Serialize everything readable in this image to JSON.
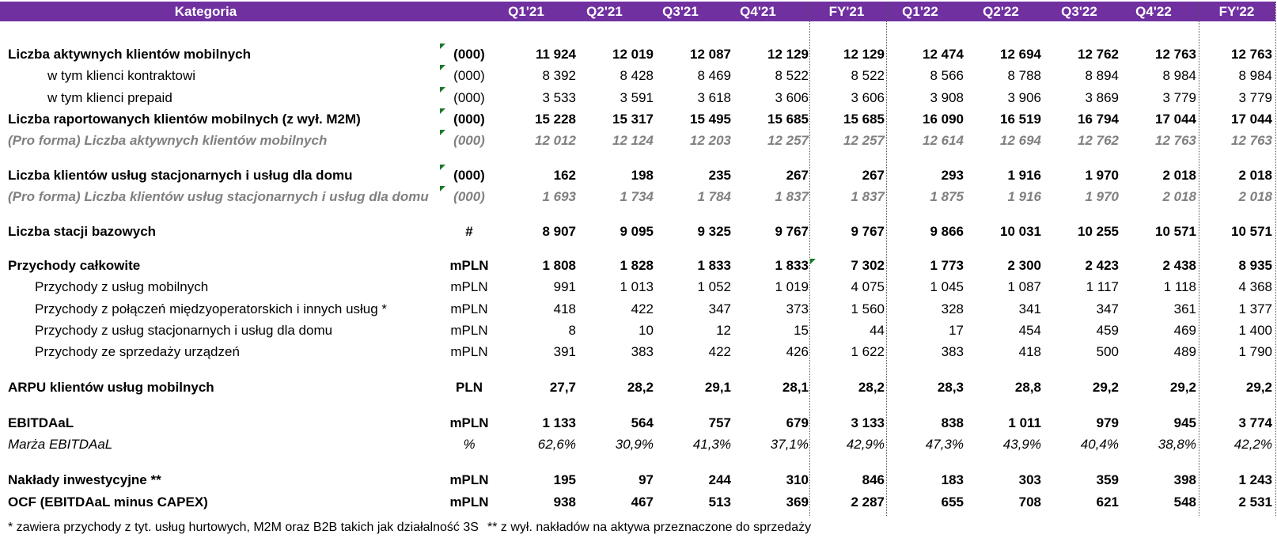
{
  "header": {
    "category": "Kategoria",
    "periods": [
      "Q1'21",
      "Q2'21",
      "Q3'21",
      "Q4'21",
      "FY'21",
      "Q1'22",
      "Q2'22",
      "Q3'22",
      "Q4'22",
      "FY'22"
    ]
  },
  "rows": [
    {
      "label": "Liczba aktywnych klientów mobilnych",
      "unit": "(000)",
      "values": [
        "11 924",
        "12 019",
        "12 087",
        "12 129",
        "12 129",
        "12 474",
        "12 694",
        "12 762",
        "12 763",
        "12 763"
      ]
    },
    {
      "label": "w tym klienci kontraktowi",
      "unit": "(000)",
      "values": [
        "8 392",
        "8 428",
        "8 469",
        "8 522",
        "8 522",
        "8 566",
        "8 788",
        "8 894",
        "8 984",
        "8 984"
      ]
    },
    {
      "label": "w tym klienci prepaid",
      "unit": "(000)",
      "values": [
        "3 533",
        "3 591",
        "3 618",
        "3 606",
        "3 606",
        "3 908",
        "3 906",
        "3 869",
        "3 779",
        "3 779"
      ]
    },
    {
      "label": "Liczba raportowanych klientów mobilnych (z wył. M2M)",
      "unit": "(000)",
      "values": [
        "15 228",
        "15 317",
        "15 495",
        "15 685",
        "15 685",
        "16 090",
        "16 519",
        "16 794",
        "17 044",
        "17 044"
      ]
    },
    {
      "label": "(Pro forma) Liczba aktywnych klientów mobilnych",
      "unit": "(000)",
      "values": [
        "12 012",
        "12 124",
        "12 203",
        "12 257",
        "12 257",
        "12 614",
        "12 694",
        "12 762",
        "12 763",
        "12 763"
      ]
    },
    {
      "label": "Liczba klientów usług stacjonarnych i usług dla domu",
      "unit": "(000)",
      "values": [
        "162",
        "198",
        "235",
        "267",
        "267",
        "293",
        "1 916",
        "1 970",
        "2 018",
        "2 018"
      ]
    },
    {
      "label": "(Pro forma) Liczba klientów usług stacjonarnych i usług dla domu",
      "unit": "(000)",
      "values": [
        "1 693",
        "1 734",
        "1 784",
        "1 837",
        "1 837",
        "1 875",
        "1 916",
        "1 970",
        "2 018",
        "2 018"
      ]
    },
    {
      "label": "Liczba stacji bazowych",
      "unit": "#",
      "values": [
        "8 907",
        "9 095",
        "9 325",
        "9 767",
        "9 767",
        "9 866",
        "10 031",
        "10 255",
        "10 571",
        "10 571"
      ]
    },
    {
      "label": "Przychody całkowite",
      "unit": "mPLN",
      "values": [
        "1 808",
        "1 828",
        "1 833",
        "1 833",
        "7 302",
        "1 773",
        "2 300",
        "2 423",
        "2 438",
        "8 935"
      ]
    },
    {
      "label": "Przychody z usług mobilnych",
      "unit": "mPLN",
      "values": [
        "991",
        "1 013",
        "1 052",
        "1 019",
        "4 075",
        "1 045",
        "1 087",
        "1 117",
        "1 118",
        "4 368"
      ]
    },
    {
      "label": "Przychody z połączeń międzyoperatorskich i innych usług *",
      "unit": "mPLN",
      "values": [
        "418",
        "422",
        "347",
        "373",
        "1 560",
        "328",
        "341",
        "347",
        "361",
        "1 377"
      ]
    },
    {
      "label": "Przychody z usług stacjonarnych i usług dla domu",
      "unit": "mPLN",
      "values": [
        "8",
        "10",
        "12",
        "15",
        "44",
        "17",
        "454",
        "459",
        "469",
        "1 400"
      ]
    },
    {
      "label": "Przychody ze sprzedaży urządzeń",
      "unit": "mPLN",
      "values": [
        "391",
        "383",
        "422",
        "426",
        "1 622",
        "383",
        "418",
        "500",
        "489",
        "1 790"
      ]
    },
    {
      "label": "ARPU klientów usług mobilnych",
      "unit": "PLN",
      "values": [
        "27,7",
        "28,2",
        "29,1",
        "28,1",
        "28,2",
        "28,3",
        "28,8",
        "29,2",
        "29,2",
        "29,2"
      ]
    },
    {
      "label": "EBITDAaL",
      "unit": "mPLN",
      "values": [
        "1 133",
        "564",
        "757",
        "679",
        "3 133",
        "838",
        "1 011",
        "979",
        "945",
        "3 774"
      ]
    },
    {
      "label": "Marża EBITDAaL",
      "unit": "%",
      "values": [
        "62,6%",
        "30,9%",
        "41,3%",
        "37,1%",
        "42,9%",
        "47,3%",
        "43,9%",
        "40,4%",
        "38,8%",
        "42,2%"
      ]
    },
    {
      "label": "Nakłady inwestycyjne **",
      "unit": "mPLN",
      "values": [
        "195",
        "97",
        "244",
        "310",
        "846",
        "183",
        "303",
        "359",
        "398",
        "1 243"
      ]
    },
    {
      "label": "OCF (EBITDAaL minus CAPEX)",
      "unit": "mPLN",
      "values": [
        "938",
        "467",
        "513",
        "369",
        "2 287",
        "655",
        "708",
        "621",
        "548",
        "2 531"
      ]
    }
  ],
  "footnotes": {
    "note1": "* zawiera przychody z tyt. usług hurtowych, M2M oraz B2B takich jak działalność 3S",
    "note2": "** z wył. nakładów na aktywa przeznaczone do sprzedaży"
  },
  "colors": {
    "header_bg": "#7030a0",
    "header_text": "#ffffff",
    "proforma_text": "#808080",
    "comment_marker": "#1a7a2a"
  }
}
